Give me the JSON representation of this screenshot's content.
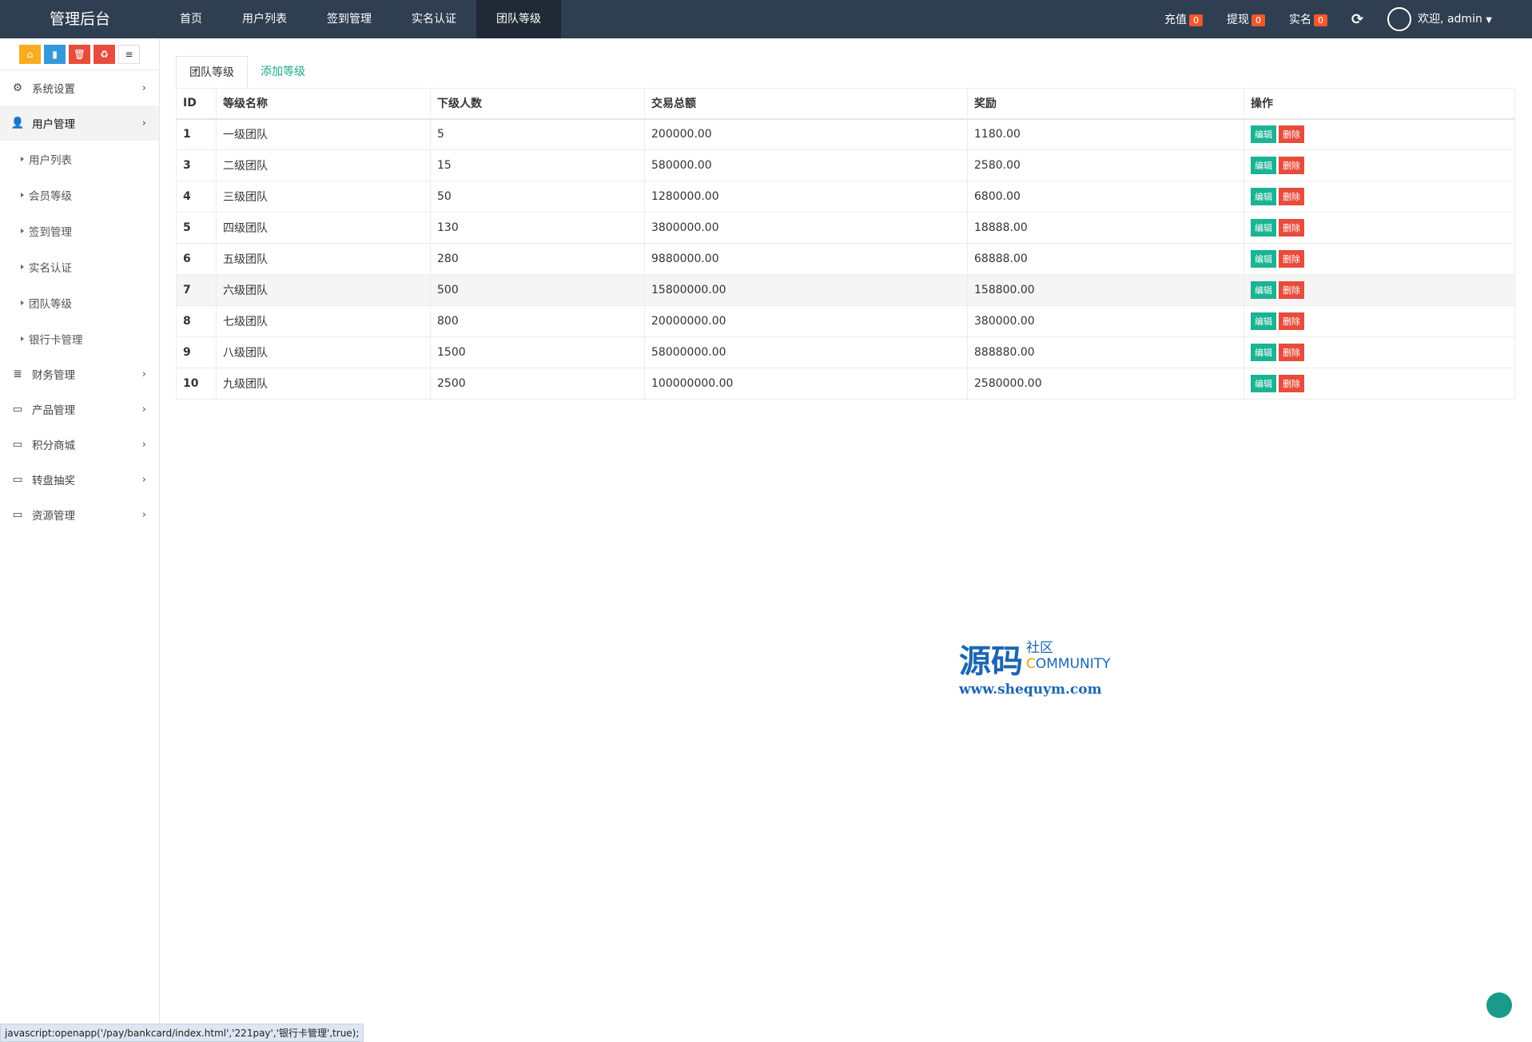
{
  "header": {
    "brand": "管理后台",
    "nav": [
      {
        "label": "首页"
      },
      {
        "label": "用户列表"
      },
      {
        "label": "签到管理"
      },
      {
        "label": "实名认证"
      },
      {
        "label": "团队等级",
        "active": true
      }
    ],
    "right": {
      "recharge": "充值",
      "recharge_count": "0",
      "withdraw": "提现",
      "withdraw_count": "0",
      "realname": "实名",
      "realname_count": "0",
      "welcome": "欢迎, admin"
    }
  },
  "sidebar": {
    "tools": [
      "home-icon",
      "file-icon",
      "trash-icon",
      "recycle-icon",
      "list-icon"
    ],
    "menus": [
      {
        "label": "系统设置",
        "icon": "gears-icon"
      },
      {
        "label": "用户管理",
        "icon": "user-icon",
        "open": true
      }
    ],
    "sub": [
      {
        "label": "用户列表"
      },
      {
        "label": "会员等级"
      },
      {
        "label": "签到管理"
      },
      {
        "label": "实名认证"
      },
      {
        "label": "团队等级"
      },
      {
        "label": "银行卡管理"
      }
    ],
    "menus2": [
      {
        "label": "财务管理",
        "icon": "database-icon"
      },
      {
        "label": "产品管理",
        "icon": "desktop-icon"
      },
      {
        "label": "积分商城",
        "icon": "desktop-icon"
      },
      {
        "label": "转盘抽奖",
        "icon": "desktop-icon"
      },
      {
        "label": "资源管理",
        "icon": "desktop-icon"
      }
    ]
  },
  "tabs": {
    "current": "团队等级",
    "add": "添加等级"
  },
  "table": {
    "headers": [
      "ID",
      "等级名称",
      "下级人数",
      "交易总额",
      "奖励",
      "操作"
    ],
    "edit": "编辑",
    "delete": "删除",
    "rows": [
      [
        "1",
        "一级团队",
        "5",
        "200000.00",
        "1180.00"
      ],
      [
        "3",
        "二级团队",
        "15",
        "580000.00",
        "2580.00"
      ],
      [
        "4",
        "三级团队",
        "50",
        "1280000.00",
        "6800.00"
      ],
      [
        "5",
        "四级团队",
        "130",
        "3800000.00",
        "18888.00"
      ],
      [
        "6",
        "五级团队",
        "280",
        "9880000.00",
        "68888.00"
      ],
      [
        "7",
        "六级团队",
        "500",
        "15800000.00",
        "158800.00"
      ],
      [
        "8",
        "七级团队",
        "800",
        "20000000.00",
        "380000.00"
      ],
      [
        "9",
        "八级团队",
        "1500",
        "58000000.00",
        "888880.00"
      ],
      [
        "10",
        "九级团队",
        "2500",
        "100000000.00",
        "2580000.00"
      ]
    ]
  },
  "watermark": {
    "cn": "源码",
    "cn2": "社区",
    "en": "COMMUNITY",
    "url": "www.shequym.com"
  },
  "status_bar": "javascript:openapp('/pay/bankcard/index.html','221pay','银行卡管理',true);",
  "colors": {
    "header": "#2f3e51",
    "edit": "#1ab394",
    "delete": "#e74c3c",
    "badge": "#f1582b"
  }
}
